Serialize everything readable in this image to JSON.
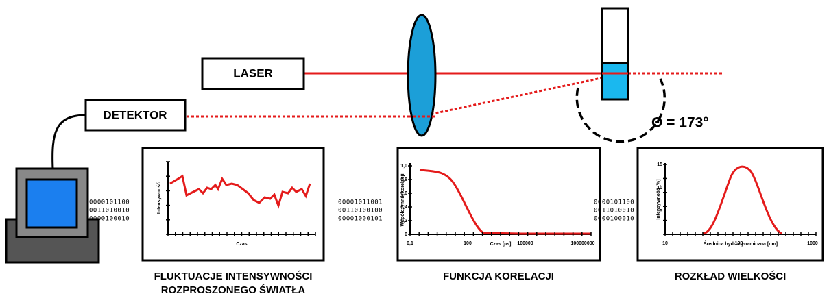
{
  "components": {
    "laser": "LASER",
    "detector": "DETEKTOR",
    "angle": "Θ = 173°"
  },
  "binary": [
    [
      "0000101100",
      "0011010010",
      "0000100010"
    ],
    [
      "00001011001",
      "00110100100",
      "00001000101"
    ],
    [
      "0000101100",
      "0011010010",
      "0000100010"
    ]
  ],
  "panels": [
    {
      "caption": [
        "FLUKTUACJE INTENSYWNOŚCI",
        "ROZPROSZONEGO ŚWIATŁA"
      ],
      "y_label": "Intensywność",
      "x_label": "Czas",
      "y_ticks": [],
      "x_ticks": []
    },
    {
      "caption": [
        "FUNKCJA KORELACJI"
      ],
      "y_label": "Współczynnik korelacji",
      "x_label": "Czas [µs]",
      "y_ticks": [
        "1,0",
        "0,8",
        "0,6",
        "0,4",
        "0,2",
        "0"
      ],
      "x_ticks": [
        "0,1",
        "100",
        "100000",
        "100000000"
      ]
    },
    {
      "caption": [
        "ROZKŁAD WIELKOŚCI"
      ],
      "y_label": "Intensywność [%]",
      "x_label": "Średnica hydrodynamiczna [nm]",
      "y_ticks": [
        "15",
        "10",
        "5"
      ],
      "x_ticks": [
        "10",
        "100",
        "1000"
      ]
    }
  ]
}
